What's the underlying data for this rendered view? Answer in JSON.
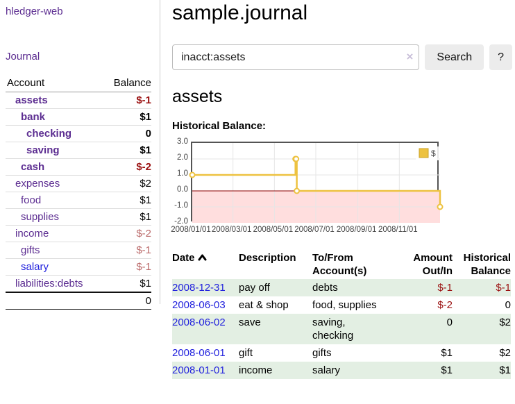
{
  "app": {
    "title": "hledger-web",
    "nav_journal": "Journal"
  },
  "sidebar": {
    "headers": {
      "account": "Account",
      "balance": "Balance"
    },
    "accounts": [
      {
        "name": "assets",
        "indent": 1,
        "balance": "$-1",
        "bold": true,
        "balance_style": "negative"
      },
      {
        "name": "bank",
        "indent": 2,
        "balance": "$1",
        "bold": true,
        "balance_style": "normal"
      },
      {
        "name": "checking",
        "indent": 3,
        "balance": "0",
        "bold": true,
        "balance_style": "normal"
      },
      {
        "name": "saving",
        "indent": 3,
        "balance": "$1",
        "bold": true,
        "balance_style": "normal"
      },
      {
        "name": "cash",
        "indent": 2,
        "balance": "$-2",
        "bold": true,
        "balance_style": "negative"
      },
      {
        "name": "expenses",
        "indent": 1,
        "balance": "$2",
        "bold": false,
        "balance_style": "normal"
      },
      {
        "name": "food",
        "indent": 2,
        "balance": "$1",
        "bold": false,
        "balance_style": "normal"
      },
      {
        "name": "supplies",
        "indent": 2,
        "balance": "$1",
        "bold": false,
        "balance_style": "normal"
      },
      {
        "name": "income",
        "indent": 1,
        "balance": "$-2",
        "bold": false,
        "balance_style": "negative-faded"
      },
      {
        "name": "gifts",
        "indent": 2,
        "balance": "$-1",
        "bold": false,
        "balance_style": "negative-faded"
      },
      {
        "name": "salary",
        "indent": 2,
        "balance": "$-1",
        "bold": false,
        "balance_style": "negative-faded",
        "link_color": "blue"
      },
      {
        "name": "liabilities:debts",
        "indent": 1,
        "balance": "$1",
        "bold": false,
        "balance_style": "normal"
      }
    ],
    "total": "0"
  },
  "header": {
    "title": "sample.journal"
  },
  "search": {
    "value": "inacct:assets",
    "clear_icon": "×",
    "button_label": "Search",
    "help_label": "?"
  },
  "account_page": {
    "heading": "assets",
    "chart_label": "Historical Balance:"
  },
  "chart_data": {
    "type": "line",
    "step": true,
    "title": "Historical Balance",
    "series": [
      {
        "name": "$",
        "color": "#EDC240",
        "points": [
          [
            "2008-01-01",
            1
          ],
          [
            "2008-06-01",
            2
          ],
          [
            "2008-06-02",
            2
          ],
          [
            "2008-06-03",
            0
          ],
          [
            "2008-12-31",
            -1
          ]
        ]
      }
    ],
    "x_range": [
      "2008-01-01",
      "2008-12-31"
    ],
    "x_ticks": [
      "2008/01/01",
      "2008/03/01",
      "2008/05/01",
      "2008/07/01",
      "2008/09/01",
      "2008/11/01"
    ],
    "y_ticks": [
      3.0,
      2.0,
      1.0,
      0.0,
      -1.0,
      -2.0
    ],
    "ylim": [
      -2,
      3
    ],
    "grid": true,
    "legend_position": "top-right",
    "below_zero_fill": "#ffdede",
    "zero_line_color": "#8b0000",
    "grid_color": "#e6e6e6",
    "border_color": "#545454"
  },
  "transactions": {
    "headers": {
      "date": "Date",
      "description": "Description",
      "accounts": "To/From Account(s)",
      "amount": "Amount Out/In",
      "balance": "Historical Balance"
    },
    "sort": "ascending",
    "rows": [
      {
        "date": "2008-12-31",
        "description": "pay off",
        "accounts": "debts",
        "amount": "$-1",
        "amount_negative": true,
        "balance": "$-1",
        "balance_negative": true
      },
      {
        "date": "2008-06-03",
        "description": "eat & shop",
        "accounts": "food, supplies",
        "amount": "$-2",
        "amount_negative": true,
        "balance": "0",
        "balance_negative": false
      },
      {
        "date": "2008-06-02",
        "description": "save",
        "accounts": "saving, checking",
        "amount": "0",
        "amount_negative": false,
        "balance": "$2",
        "balance_negative": false
      },
      {
        "date": "2008-06-01",
        "description": "gift",
        "accounts": "gifts",
        "amount": "$1",
        "amount_negative": false,
        "balance": "$2",
        "balance_negative": false
      },
      {
        "date": "2008-01-01",
        "description": "income",
        "accounts": "salary",
        "amount": "$1",
        "amount_negative": false,
        "balance": "$1",
        "balance_negative": false
      }
    ]
  },
  "colors": {
    "link_purple": "#5c2d91",
    "link_blue": "#2222dd",
    "negative": "#9b1212",
    "negative_faded": "#bb6a6a",
    "row_green": "#e3efe3",
    "chart_line": "#EDC240",
    "chart_negative_region": "#ffdede",
    "chart_zero_line": "#8b0000"
  }
}
